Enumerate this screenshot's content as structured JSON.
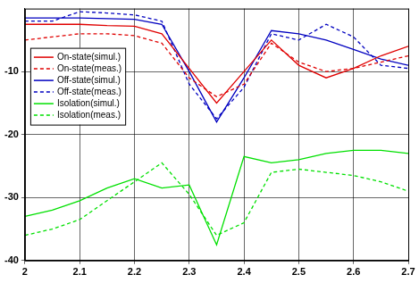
{
  "chart_data": {
    "type": "line",
    "x": [
      2.0,
      2.05,
      2.1,
      2.15,
      2.2,
      2.25,
      2.3,
      2.35,
      2.4,
      2.45,
      2.5,
      2.55,
      2.6,
      2.65,
      2.7
    ],
    "series": [
      {
        "name": "On-state(simul.)",
        "color": "#e00000",
        "line_style": "solid",
        "marker": "none",
        "values": [
          -2.5,
          -2.5,
          -2.5,
          -2.7,
          -2.8,
          -4,
          -9.5,
          -15,
          -10,
          -5,
          -9,
          -11,
          -9.5,
          -7.5,
          -6
        ]
      },
      {
        "name": "On-state(meas.)",
        "color": "#e00000",
        "line_style": "dashed",
        "marker": "none",
        "values": [
          -5,
          -4.5,
          -4,
          -4,
          -4.3,
          -5.5,
          -11,
          -14,
          -12,
          -5.5,
          -8.5,
          -10,
          -9.5,
          -8.5,
          -7.5
        ]
      },
      {
        "name": "Off-state(simul.)",
        "color": "#0000c0",
        "line_style": "solid",
        "marker": "none",
        "values": [
          -1.5,
          -1.5,
          -1.5,
          -1.6,
          -1.7,
          -2.5,
          -10,
          -18,
          -11,
          -3.5,
          -4,
          -5,
          -6.5,
          -8,
          -9
        ]
      },
      {
        "name": "Off-state(meas.)",
        "color": "#0000c0",
        "line_style": "dashed",
        "marker": "none",
        "values": [
          -2,
          -2,
          -0.5,
          -0.7,
          -1,
          -2,
          -12,
          -17.5,
          -12.5,
          -4,
          -5,
          -2.5,
          -4.5,
          -9,
          -9.5
        ]
      },
      {
        "name": "Isolation(simul.)",
        "color": "#00e000",
        "line_style": "solid",
        "marker": "none",
        "values": [
          -33,
          -32,
          -30.5,
          -28.5,
          -27,
          -28.5,
          -28,
          -37.5,
          -23.5,
          -24.5,
          -24,
          -23,
          -22.5,
          -22.5,
          -23
        ]
      },
      {
        "name": "Isolation(meas.)",
        "color": "#00e000",
        "line_style": "dashed",
        "marker": "none",
        "values": [
          -36,
          -35,
          -33.5,
          -30.5,
          -27.5,
          -24.5,
          -29.5,
          -36,
          -34,
          -26,
          -25.5,
          -26,
          -26.5,
          -27.5,
          -29
        ]
      }
    ],
    "xlim": [
      2,
      2.7
    ],
    "xticks": [
      2,
      2.1,
      2.2,
      2.3,
      2.4,
      2.5,
      2.6,
      2.7
    ],
    "ylim": [
      -40,
      0
    ],
    "yticks": [
      -40,
      -30,
      -20,
      -10
    ],
    "grid": true,
    "legend": "upper left"
  }
}
